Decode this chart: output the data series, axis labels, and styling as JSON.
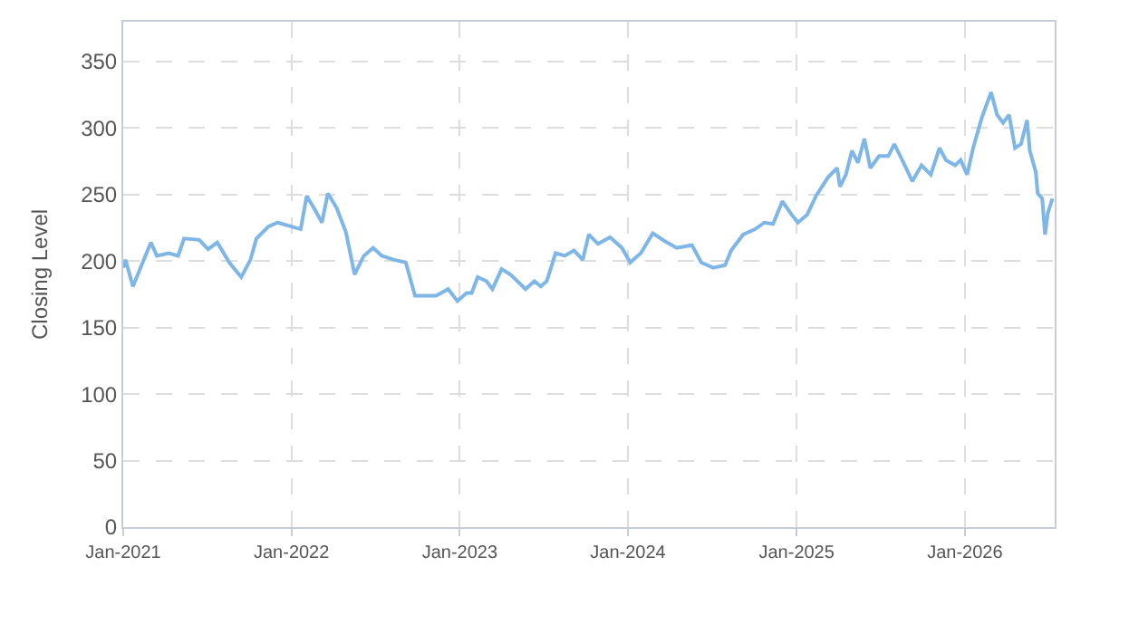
{
  "chart_data": {
    "type": "line",
    "ylabel": "Closing Level",
    "grid": true,
    "line_style": "solid",
    "marker": "none",
    "xlim": [
      "2021-01-01",
      "2026-07-15"
    ],
    "xticks": [
      {
        "value": "2021-01-01",
        "label": "Jan-2021"
      },
      {
        "value": "2022-01-01",
        "label": "Jan-2022"
      },
      {
        "value": "2023-01-01",
        "label": "Jan-2023"
      },
      {
        "value": "2024-01-01",
        "label": "Jan-2024"
      },
      {
        "value": "2025-01-01",
        "label": "Jan-2025"
      },
      {
        "value": "2026-01-01",
        "label": "Jan-2026"
      }
    ],
    "ylim": [
      0,
      380
    ],
    "yticks": [
      0,
      50,
      100,
      150,
      200,
      250,
      300,
      350
    ],
    "x": [
      "2021-01-01",
      "2021-01-06",
      "2021-01-22",
      "2021-02-04",
      "2021-03-02",
      "2021-03-15",
      "2021-04-10",
      "2021-04-30",
      "2021-05-13",
      "2021-06-15",
      "2021-07-04",
      "2021-07-24",
      "2021-08-19",
      "2021-09-14",
      "2021-10-04",
      "2021-10-17",
      "2021-11-12",
      "2021-12-02",
      "2022-01-01",
      "2022-01-21",
      "2022-02-03",
      "2022-02-22",
      "2022-03-08",
      "2022-03-21",
      "2022-04-09",
      "2022-04-29",
      "2022-05-18",
      "2022-06-07",
      "2022-06-27",
      "2022-07-16",
      "2022-08-12",
      "2022-09-06",
      "2022-09-26",
      "2022-10-10",
      "2022-11-11",
      "2022-12-07",
      "2022-12-27",
      "2023-01-16",
      "2023-01-27",
      "2023-02-09",
      "2023-02-28",
      "2023-03-13",
      "2023-04-02",
      "2023-04-21",
      "2023-05-24",
      "2023-06-12",
      "2023-06-26",
      "2023-07-09",
      "2023-07-28",
      "2023-08-17",
      "2023-09-06",
      "2023-09-25",
      "2023-10-08",
      "2023-10-28",
      "2023-11-23",
      "2023-12-19",
      "2024-01-06",
      "2024-01-29",
      "2024-02-24",
      "2024-03-21",
      "2024-04-16",
      "2024-05-19",
      "2024-06-08",
      "2024-07-04",
      "2024-07-30",
      "2024-08-12",
      "2024-09-07",
      "2024-10-03",
      "2024-10-23",
      "2024-11-11",
      "2024-12-01",
      "2024-12-21",
      "2025-01-04",
      "2025-01-24",
      "2025-02-12",
      "2025-03-10",
      "2025-03-30",
      "2025-04-05",
      "2025-04-18",
      "2025-05-01",
      "2025-05-14",
      "2025-05-28",
      "2025-06-10",
      "2025-06-29",
      "2025-07-19",
      "2025-08-01",
      "2025-08-21",
      "2025-09-09",
      "2025-09-29",
      "2025-10-19",
      "2025-11-07",
      "2025-11-21",
      "2025-12-11",
      "2025-12-23",
      "2026-01-06",
      "2026-01-19",
      "2026-02-07",
      "2026-02-27",
      "2026-03-12",
      "2026-03-25",
      "2026-04-07",
      "2026-04-20",
      "2026-05-03",
      "2026-05-16",
      "2026-05-22",
      "2026-06-04",
      "2026-06-08",
      "2026-06-18",
      "2026-06-24",
      "2026-06-30",
      "2026-07-10"
    ],
    "series": [
      {
        "color": "#7eb6e8",
        "values": [
          195,
          201,
          181,
          192,
          214,
          204,
          206,
          204,
          217,
          216,
          209,
          214,
          199,
          188,
          201,
          217,
          226,
          229,
          226,
          224,
          249,
          238,
          229,
          251,
          240,
          222,
          190,
          204,
          210,
          204,
          201,
          199,
          174,
          174,
          174,
          179,
          170,
          176,
          176,
          188,
          185,
          179,
          194,
          190,
          179,
          185,
          181,
          185,
          206,
          204,
          208,
          201,
          220,
          213,
          218,
          210,
          199,
          206,
          221,
          215,
          210,
          212,
          199,
          195,
          197,
          208,
          220,
          224,
          229,
          228,
          245,
          235,
          229,
          235,
          249,
          263,
          270,
          256,
          265,
          283,
          274,
          292,
          270,
          279,
          279,
          288,
          274,
          260,
          272,
          265,
          285,
          276,
          272,
          276,
          265,
          285,
          308,
          327,
          310,
          304,
          310,
          285,
          288,
          306,
          283,
          267,
          251,
          247,
          220,
          236,
          247
        ]
      }
    ]
  }
}
